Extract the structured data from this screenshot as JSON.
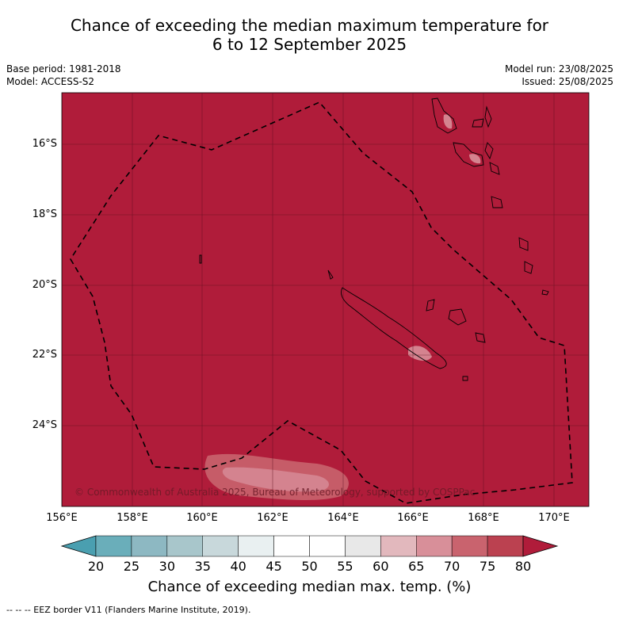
{
  "title_line1": "Chance of exceeding the median maximum temperature for",
  "title_line2": "6 to 12 September 2025",
  "base_period": "Base period: 1981-2018",
  "model": "Model: ACCESS-S2",
  "model_run": "Model run: 23/08/2025",
  "issued": "Issued: 25/08/2025",
  "lon_ticks": [
    "156°E",
    "158°E",
    "160°E",
    "162°E",
    "164°E",
    "166°E",
    "168°E",
    "170°E"
  ],
  "lat_ticks": [
    "16°S",
    "18°S",
    "20°S",
    "22°S",
    "24°S"
  ],
  "copyright": "© Commonwealth of Australia 2025, Bureau of Meteorology, supported by COSPPac",
  "colorbar": {
    "labels": [
      "20",
      "25",
      "30",
      "35",
      "40",
      "45",
      "50",
      "55",
      "60",
      "65",
      "70",
      "75",
      "80"
    ],
    "colors": [
      "#6aaeba",
      "#8db8c2",
      "#a8c6cb",
      "#c8d8db",
      "#e9f0f1",
      "#ffffff",
      "#ffffff",
      "#e8e8e8",
      "#e2b8bd",
      "#d88f99",
      "#c9636e",
      "#bb4150"
    ],
    "low_color": "#4a9fb0",
    "high_color": "#b01c3a",
    "title": "Chance of exceeding median max. temp. (%)"
  },
  "map_fill_color": "#b01c3a",
  "footnote": "--  --  -- EEZ border V11 (Flanders Marine Institute, 2019)."
}
